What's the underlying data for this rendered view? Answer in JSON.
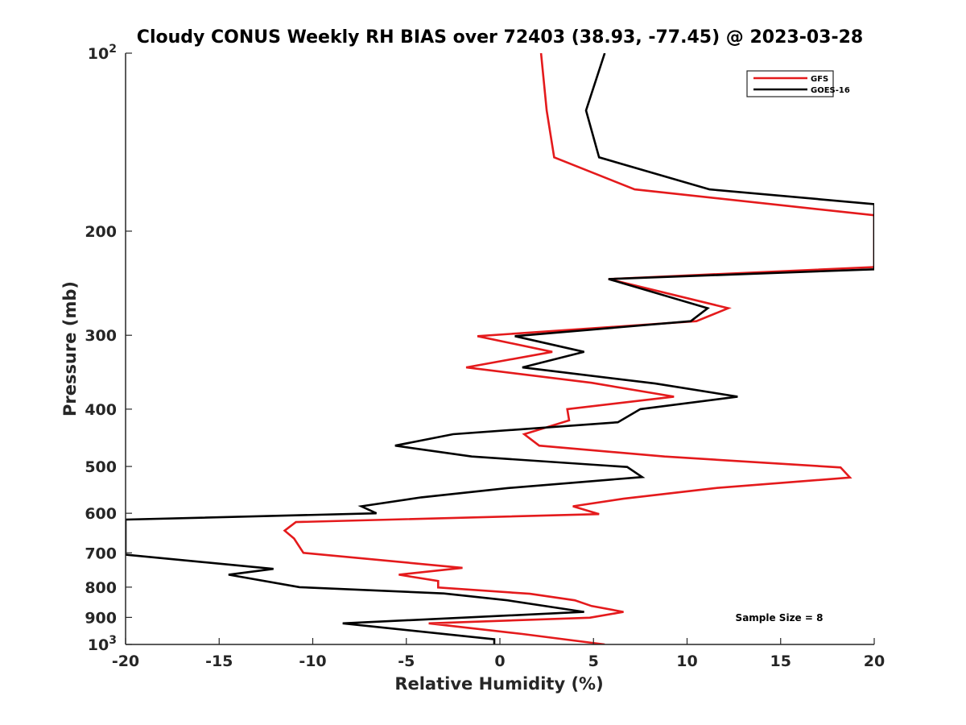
{
  "chart_data": {
    "type": "line",
    "title": "Cloudy CONUS Weekly RH BIAS over 72403 (38.93, -77.45) @ 2023-03-28",
    "xlabel": "Relative Humidity (%)",
    "ylabel": "Pressure (mb)",
    "xlim": [
      -20,
      20
    ],
    "ylim": [
      100,
      1000
    ],
    "y_scale": "log",
    "y_reversed": true,
    "grid": false,
    "legend_position": "top-right",
    "x_ticks": [
      "-20",
      "-15",
      "-10",
      "-5",
      "0",
      "5",
      "10",
      "15",
      "20"
    ],
    "y_ticks": [
      {
        "value": 100,
        "base": "10",
        "exp": "2"
      },
      {
        "value": 200,
        "label": "200"
      },
      {
        "value": 300,
        "label": "300"
      },
      {
        "value": 400,
        "label": "400"
      },
      {
        "value": 500,
        "label": "500"
      },
      {
        "value": 600,
        "label": "600"
      },
      {
        "value": 700,
        "label": "700"
      },
      {
        "value": 800,
        "label": "800"
      },
      {
        "value": 900,
        "label": "900"
      },
      {
        "value": 1000,
        "base": "10",
        "exp": "3"
      }
    ],
    "annotation": "Sample Size = 8",
    "series": [
      {
        "name": "GFS",
        "color": "#e41a1c",
        "points": [
          [
            2.2,
            100
          ],
          [
            2.5,
            125
          ],
          [
            2.9,
            150
          ],
          [
            7.2,
            170
          ],
          [
            20,
            188
          ],
          [
            20,
            230
          ],
          [
            5.8,
            241
          ],
          [
            12.2,
            270
          ],
          [
            10.5,
            284
          ],
          [
            -1.2,
            301
          ],
          [
            2.8,
            320
          ],
          [
            -1.8,
            340
          ],
          [
            4.9,
            361
          ],
          [
            9.3,
            381
          ],
          [
            3.6,
            400
          ],
          [
            3.7,
            418
          ],
          [
            1.3,
            441
          ],
          [
            2.1,
            461
          ],
          [
            8.8,
            481
          ],
          [
            18.2,
            502
          ],
          [
            18.7,
            522
          ],
          [
            11.5,
            544
          ],
          [
            6.6,
            567
          ],
          [
            3.9,
            584
          ],
          [
            5.3,
            602
          ],
          [
            -10.9,
            621
          ],
          [
            -11.5,
            642
          ],
          [
            -11.0,
            662
          ],
          [
            -10.5,
            700
          ],
          [
            -2.0,
            742
          ],
          [
            -5.4,
            762
          ],
          [
            -3.3,
            781
          ],
          [
            -3.3,
            801
          ],
          [
            1.6,
            821
          ],
          [
            4.0,
            842
          ],
          [
            4.9,
            861
          ],
          [
            6.6,
            881
          ],
          [
            4.8,
            901
          ],
          [
            -3.8,
            921
          ],
          [
            1.2,
            960
          ],
          [
            5.6,
            1000
          ]
        ]
      },
      {
        "name": "GOES-16",
        "color": "#000000",
        "points": [
          [
            5.6,
            100
          ],
          [
            4.6,
            125
          ],
          [
            5.3,
            150
          ],
          [
            11.2,
            170
          ],
          [
            20,
            180
          ],
          [
            20,
            232
          ],
          [
            5.8,
            241
          ],
          [
            11.1,
            270
          ],
          [
            10.2,
            284
          ],
          [
            0.8,
            301
          ],
          [
            4.5,
            320
          ],
          [
            1.2,
            340
          ],
          [
            8.3,
            362
          ],
          [
            12.7,
            381
          ],
          [
            7.5,
            400
          ],
          [
            6.3,
            421
          ],
          [
            -2.5,
            441
          ],
          [
            -5.6,
            461
          ],
          [
            -1.5,
            481
          ],
          [
            6.8,
            501
          ],
          [
            7.6,
            521
          ],
          [
            0.4,
            544
          ],
          [
            -4.2,
            564
          ],
          [
            -7.4,
            584
          ],
          [
            -6.6,
            600
          ],
          [
            -20,
            615
          ],
          [
            -20,
            705
          ],
          [
            -12.1,
            745
          ],
          [
            -14.5,
            762
          ],
          [
            -10.7,
            800
          ],
          [
            -3.0,
            820
          ],
          [
            0.4,
            842
          ],
          [
            4.5,
            881
          ],
          [
            -8.4,
            921
          ],
          [
            -0.3,
            980
          ],
          [
            -0.3,
            1000
          ]
        ]
      }
    ]
  }
}
